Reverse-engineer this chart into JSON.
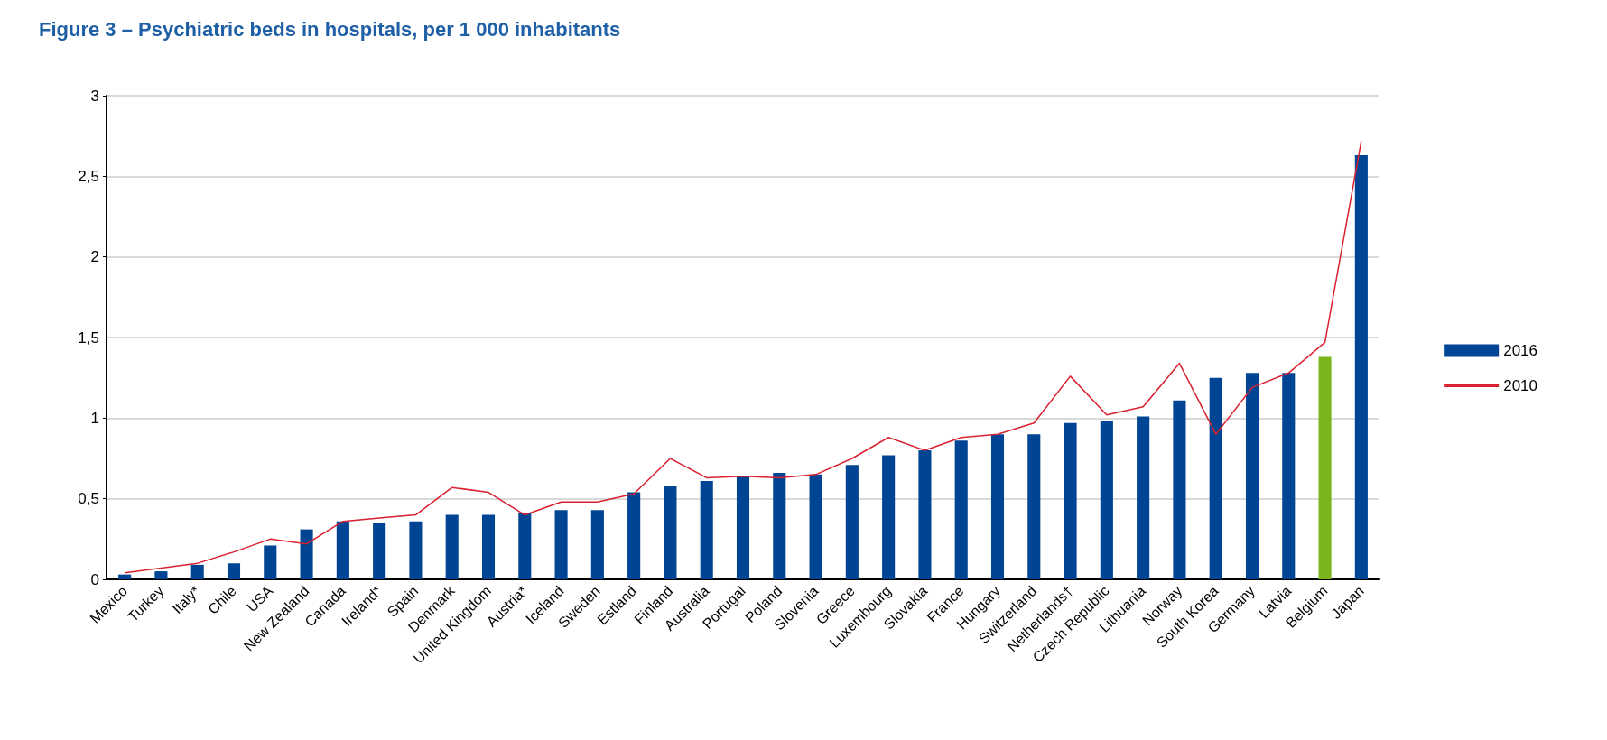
{
  "chart_data": {
    "type": "bar",
    "title": "Figure 3 – Psychiatric beds in hospitals, per 1 000 inhabitants",
    "categories": [
      "Mexico",
      "Turkey",
      "Italy*",
      "Chile",
      "USA",
      "New Zealand",
      "Canada",
      "Ireland*",
      "Spain",
      "Denmark",
      "United Kingdom",
      "Austria*",
      "Iceland",
      "Sweden",
      "Estland",
      "Finland",
      "Australia",
      "Portugal",
      "Poland",
      "Slovenia",
      "Greece",
      "Luxembourg",
      "Slovakia",
      "France",
      "Hungary",
      "Switzerland",
      "Netherlands†",
      "Czech Republic",
      "Lithuania",
      "Norway",
      "South Korea",
      "Germany",
      "Latvia",
      "Belgium",
      "Japan"
    ],
    "series": [
      {
        "name": "2016",
        "color": "#004494",
        "colors": [
          "#004494",
          "#004494",
          "#004494",
          "#004494",
          "#004494",
          "#004494",
          "#004494",
          "#004494",
          "#004494",
          "#004494",
          "#004494",
          "#004494",
          "#004494",
          "#004494",
          "#004494",
          "#004494",
          "#004494",
          "#004494",
          "#004494",
          "#004494",
          "#004494",
          "#004494",
          "#004494",
          "#004494",
          "#004494",
          "#004494",
          "#004494",
          "#004494",
          "#004494",
          "#004494",
          "#004494",
          "#004494",
          "#004494",
          "#7ab51d",
          "#004494"
        ],
        "values": [
          0.03,
          0.05,
          0.09,
          0.1,
          0.21,
          0.31,
          0.36,
          0.35,
          0.36,
          0.4,
          0.4,
          0.41,
          0.43,
          0.43,
          0.54,
          0.58,
          0.61,
          0.64,
          0.66,
          0.65,
          0.71,
          0.77,
          0.8,
          0.86,
          0.9,
          0.9,
          0.97,
          0.98,
          1.01,
          1.11,
          1.25,
          1.28,
          1.28,
          1.38,
          2.63
        ]
      },
      {
        "name": "2010",
        "type": "line",
        "color": "#d9212f",
        "values": [
          0.04,
          0.07,
          0.1,
          0.17,
          0.25,
          0.22,
          0.36,
          0.38,
          0.4,
          0.57,
          0.54,
          0.4,
          0.48,
          0.48,
          0.53,
          0.75,
          0.63,
          0.64,
          0.63,
          0.65,
          0.75,
          0.88,
          0.8,
          0.88,
          0.9,
          0.97,
          1.26,
          1.02,
          1.07,
          1.34,
          0.9,
          1.19,
          1.28,
          1.47,
          2.72
        ]
      }
    ],
    "ylim": [
      0,
      3
    ],
    "yticks": [
      0,
      {
        "value": 0.5,
        "label": "0,5"
      },
      1,
      {
        "value": 1.5,
        "label": "1,5"
      },
      2,
      {
        "value": 2.5,
        "label": "2,5"
      },
      3
    ],
    "grid": "y",
    "legend": "right",
    "marker": "none",
    "line_style": "solid"
  }
}
